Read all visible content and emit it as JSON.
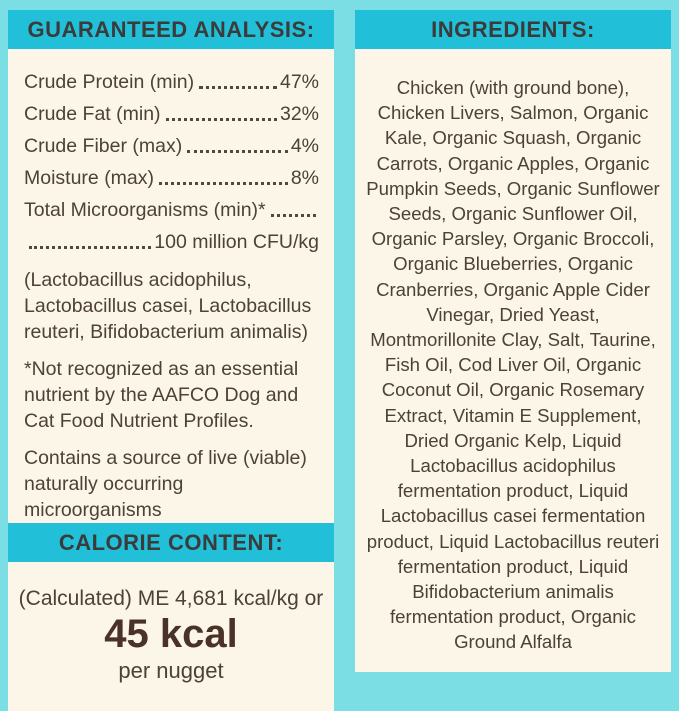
{
  "colors": {
    "frame": "#7BDEE5",
    "header_bg": "#22C0D8",
    "panel_bg": "#FBF6E8",
    "heading_text": "#3B3B3B",
    "body_text": "#4D4138",
    "kcal_text": "#4B3229"
  },
  "guaranteed_analysis": {
    "title": "GUARANTEED ANALYSIS:",
    "rows": [
      {
        "label": "Crude Protein (min)",
        "value": "47%"
      },
      {
        "label": "Crude Fat (min)",
        "value": "32%"
      },
      {
        "label": "Crude Fiber (max)",
        "value": "4%"
      },
      {
        "label": "Moisture (max)",
        "value": "8%"
      },
      {
        "label": "Total Microorganisms (min)*",
        "value": ""
      },
      {
        "label": "",
        "value": "100 million CFU/kg"
      }
    ],
    "notes": [
      "(Lactobacillus acidophilus, Lactobacillus casei, Lactobacillus reuteri, Bifidobacterium animalis)",
      "*Not recognized as an essential nutrient by the AAFCO Dog and Cat Food Nutrient Profiles.",
      "Contains a source of live (viable) naturally occurring microorganisms"
    ]
  },
  "calorie_content": {
    "title": "CALORIE CONTENT:",
    "line1": "(Calculated) ME 4,681 kcal/kg or",
    "kcal": "45 kcal",
    "per": "per nugget"
  },
  "ingredients": {
    "title": "INGREDIENTS:",
    "text": "Chicken (with ground bone), Chicken Livers, Salmon, Organic Kale, Organic Squash, Organic Carrots, Organic Apples, Organic Pumpkin Seeds, Organic Sunflower Seeds, Organic Sunflower Oil, Organic Parsley, Organic Broccoli, Organic Blueberries, Organic Cranberries, Organic Apple Cider Vinegar, Dried Yeast, Montmorillonite Clay, Salt, Taurine, Fish Oil, Cod Liver Oil, Organic Coconut Oil, Organic Rosemary Extract, Vitamin E Supplement, Dried Organic Kelp, Liquid Lactobacillus acidophilus fermentation product, Liquid Lactobacillus casei fermentation product, Liquid Lactobacillus reuteri fermentation product, Liquid Bifidobacterium animalis fermentation product, Organic Ground Alfalfa"
  }
}
